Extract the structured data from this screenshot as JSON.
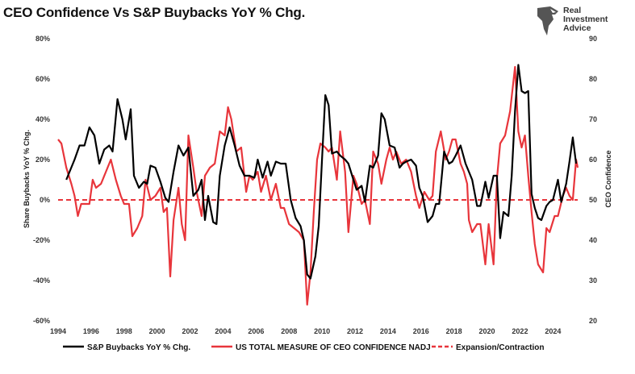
{
  "header": {
    "title": "CEO Confidence Vs S&P Buybacks YoY % Chg.",
    "logo_lines": [
      "Real",
      "Investment",
      "Advice"
    ]
  },
  "chart_data": {
    "type": "line",
    "title": "CEO Confidence Vs S&P Buybacks YoY % Chg.",
    "xlabel": "",
    "ylabel_left": "Share Buybacks YoY % Chg.",
    "ylabel_right": "CEO Confidence",
    "xlim": [
      1994,
      2025.5
    ],
    "ylim_left": [
      -60,
      80
    ],
    "ylim_right": [
      20,
      90
    ],
    "x_ticks": [
      "1994",
      "1996",
      "1998",
      "2000",
      "2002",
      "2004",
      "2006",
      "2008",
      "2010",
      "2012",
      "2014",
      "2016",
      "2018",
      "2020",
      "2022",
      "2024"
    ],
    "y_left_ticks": [
      "-60%",
      "-40%",
      "-20%",
      "0%",
      "20%",
      "40%",
      "60%",
      "80%"
    ],
    "y_right_ticks": [
      "20",
      "30",
      "40",
      "50",
      "60",
      "70",
      "80",
      "90"
    ],
    "legend_position": "bottom",
    "grid": false,
    "series": [
      {
        "name": "S&P Buybacks YoY % Chg.",
        "axis": "left",
        "color": "#000000",
        "points": [
          [
            1994.5,
            10
          ],
          [
            1995.0,
            20
          ],
          [
            1995.3,
            27
          ],
          [
            1995.6,
            27
          ],
          [
            1995.9,
            36
          ],
          [
            1996.2,
            32
          ],
          [
            1996.5,
            18
          ],
          [
            1996.8,
            25
          ],
          [
            1997.1,
            27
          ],
          [
            1997.3,
            24
          ],
          [
            1997.6,
            50
          ],
          [
            1997.9,
            40
          ],
          [
            1998.1,
            30
          ],
          [
            1998.4,
            45
          ],
          [
            1998.6,
            12
          ],
          [
            1998.9,
            6
          ],
          [
            1999.2,
            9
          ],
          [
            1999.4,
            8
          ],
          [
            1999.6,
            17
          ],
          [
            1999.9,
            16
          ],
          [
            2000.2,
            9
          ],
          [
            2000.5,
            1
          ],
          [
            2000.7,
            -1
          ],
          [
            2001.0,
            14
          ],
          [
            2001.3,
            27
          ],
          [
            2001.6,
            22
          ],
          [
            2001.9,
            26
          ],
          [
            2002.2,
            2
          ],
          [
            2002.5,
            5
          ],
          [
            2002.7,
            10
          ],
          [
            2002.9,
            -10
          ],
          [
            2003.1,
            2
          ],
          [
            2003.4,
            -11
          ],
          [
            2003.6,
            -12
          ],
          [
            2003.8,
            12
          ],
          [
            2004.1,
            27
          ],
          [
            2004.4,
            36
          ],
          [
            2004.7,
            27
          ],
          [
            2005.0,
            17
          ],
          [
            2005.3,
            12
          ],
          [
            2005.6,
            12
          ],
          [
            2005.9,
            11
          ],
          [
            2006.1,
            20
          ],
          [
            2006.4,
            11
          ],
          [
            2006.7,
            19
          ],
          [
            2006.9,
            12
          ],
          [
            2007.2,
            19
          ],
          [
            2007.5,
            18
          ],
          [
            2007.8,
            18
          ],
          [
            2008.1,
            0
          ],
          [
            2008.4,
            -9
          ],
          [
            2008.7,
            -13
          ],
          [
            2008.9,
            -20
          ],
          [
            2009.1,
            -37
          ],
          [
            2009.3,
            -39
          ],
          [
            2009.6,
            -28
          ],
          [
            2009.8,
            -13
          ],
          [
            2010.0,
            20
          ],
          [
            2010.2,
            52
          ],
          [
            2010.4,
            47
          ],
          [
            2010.6,
            23
          ],
          [
            2010.9,
            24
          ],
          [
            2011.1,
            22
          ],
          [
            2011.4,
            20
          ],
          [
            2011.6,
            18
          ],
          [
            2011.9,
            10
          ],
          [
            2012.1,
            5
          ],
          [
            2012.4,
            7
          ],
          [
            2012.6,
            -1
          ],
          [
            2012.9,
            17
          ],
          [
            2013.1,
            16
          ],
          [
            2013.4,
            22
          ],
          [
            2013.6,
            43
          ],
          [
            2013.8,
            40
          ],
          [
            2014.1,
            27
          ],
          [
            2014.4,
            26
          ],
          [
            2014.7,
            16
          ],
          [
            2014.9,
            18
          ],
          [
            2015.1,
            19
          ],
          [
            2015.4,
            20
          ],
          [
            2015.7,
            17
          ],
          [
            2015.9,
            6
          ],
          [
            2016.1,
            2
          ],
          [
            2016.4,
            -11
          ],
          [
            2016.7,
            -8
          ],
          [
            2016.9,
            -2
          ],
          [
            2017.1,
            -2
          ],
          [
            2017.4,
            24
          ],
          [
            2017.7,
            18
          ],
          [
            2017.9,
            19
          ],
          [
            2018.1,
            22
          ],
          [
            2018.4,
            27
          ],
          [
            2018.7,
            18
          ],
          [
            2018.9,
            14
          ],
          [
            2019.1,
            10
          ],
          [
            2019.4,
            -3
          ],
          [
            2019.6,
            -3
          ],
          [
            2019.9,
            9
          ],
          [
            2020.1,
            1
          ],
          [
            2020.4,
            12
          ],
          [
            2020.6,
            12
          ],
          [
            2020.8,
            -19
          ],
          [
            2021.0,
            -6
          ],
          [
            2021.3,
            -8
          ],
          [
            2021.5,
            12
          ],
          [
            2021.7,
            44
          ],
          [
            2021.9,
            67
          ],
          [
            2022.1,
            54
          ],
          [
            2022.3,
            53
          ],
          [
            2022.5,
            54
          ],
          [
            2022.7,
            3
          ],
          [
            2022.9,
            -4
          ],
          [
            2023.1,
            -9
          ],
          [
            2023.3,
            -10
          ],
          [
            2023.6,
            -3
          ],
          [
            2023.8,
            -1
          ],
          [
            2024.0,
            0
          ],
          [
            2024.3,
            10
          ],
          [
            2024.5,
            -1
          ],
          [
            2024.8,
            8
          ],
          [
            2025.0,
            19
          ],
          [
            2025.2,
            31
          ],
          [
            2025.4,
            18
          ]
        ]
      },
      {
        "name": "US TOTAL MEASURE OF CEO CONFIDENCE NADJ",
        "axis": "right",
        "color": "#e8353b",
        "points": [
          [
            1994.0,
            65
          ],
          [
            1994.2,
            64
          ],
          [
            1994.5,
            58
          ],
          [
            1994.8,
            54
          ],
          [
            1995.0,
            51
          ],
          [
            1995.2,
            46
          ],
          [
            1995.4,
            49
          ],
          [
            1995.7,
            49
          ],
          [
            1995.9,
            49
          ],
          [
            1996.1,
            55
          ],
          [
            1996.3,
            53
          ],
          [
            1996.6,
            54
          ],
          [
            1996.9,
            57
          ],
          [
            1997.2,
            60
          ],
          [
            1997.5,
            55
          ],
          [
            1997.8,
            51
          ],
          [
            1998.0,
            49
          ],
          [
            1998.3,
            49
          ],
          [
            1998.5,
            41
          ],
          [
            1998.8,
            43
          ],
          [
            1999.1,
            46
          ],
          [
            1999.3,
            55
          ],
          [
            1999.6,
            50
          ],
          [
            1999.9,
            51
          ],
          [
            2000.2,
            53
          ],
          [
            2000.4,
            47
          ],
          [
            2000.6,
            48
          ],
          [
            2000.8,
            31
          ],
          [
            2001.0,
            45
          ],
          [
            2001.3,
            53
          ],
          [
            2001.5,
            44
          ],
          [
            2001.7,
            40
          ],
          [
            2001.9,
            66
          ],
          [
            2002.2,
            58
          ],
          [
            2002.4,
            52
          ],
          [
            2002.7,
            46
          ],
          [
            2002.9,
            56
          ],
          [
            2003.2,
            58
          ],
          [
            2003.5,
            59
          ],
          [
            2003.8,
            67
          ],
          [
            2004.1,
            66
          ],
          [
            2004.3,
            73
          ],
          [
            2004.5,
            70
          ],
          [
            2004.8,
            62
          ],
          [
            2005.1,
            63
          ],
          [
            2005.4,
            52
          ],
          [
            2005.6,
            56
          ],
          [
            2005.8,
            55
          ],
          [
            2006.1,
            57
          ],
          [
            2006.3,
            52
          ],
          [
            2006.6,
            56
          ],
          [
            2006.9,
            50
          ],
          [
            2007.2,
            54
          ],
          [
            2007.5,
            48
          ],
          [
            2007.7,
            48
          ],
          [
            2008.0,
            44
          ],
          [
            2008.3,
            43
          ],
          [
            2008.6,
            42
          ],
          [
            2008.9,
            40
          ],
          [
            2009.1,
            24
          ],
          [
            2009.3,
            32
          ],
          [
            2009.5,
            47
          ],
          [
            2009.7,
            60
          ],
          [
            2009.9,
            64
          ],
          [
            2010.2,
            63
          ],
          [
            2010.4,
            62
          ],
          [
            2010.6,
            63
          ],
          [
            2010.9,
            55
          ],
          [
            2011.1,
            67
          ],
          [
            2011.4,
            57
          ],
          [
            2011.6,
            42
          ],
          [
            2011.9,
            56
          ],
          [
            2012.1,
            54
          ],
          [
            2012.4,
            49
          ],
          [
            2012.6,
            50
          ],
          [
            2012.9,
            44
          ],
          [
            2013.1,
            62
          ],
          [
            2013.4,
            59
          ],
          [
            2013.6,
            54
          ],
          [
            2013.9,
            60
          ],
          [
            2014.1,
            63
          ],
          [
            2014.3,
            60
          ],
          [
            2014.5,
            62
          ],
          [
            2014.8,
            59
          ],
          [
            2015.1,
            60
          ],
          [
            2015.4,
            57
          ],
          [
            2015.7,
            51
          ],
          [
            2015.9,
            48
          ],
          [
            2016.2,
            52
          ],
          [
            2016.5,
            50
          ],
          [
            2016.7,
            51
          ],
          [
            2016.9,
            62
          ],
          [
            2017.2,
            67
          ],
          [
            2017.5,
            60
          ],
          [
            2017.7,
            62
          ],
          [
            2017.9,
            65
          ],
          [
            2018.1,
            65
          ],
          [
            2018.4,
            59
          ],
          [
            2018.6,
            57
          ],
          [
            2018.8,
            54
          ],
          [
            2018.9,
            45
          ],
          [
            2019.1,
            42
          ],
          [
            2019.4,
            44
          ],
          [
            2019.6,
            44
          ],
          [
            2019.9,
            34
          ],
          [
            2020.1,
            44
          ],
          [
            2020.4,
            34
          ],
          [
            2020.6,
            55
          ],
          [
            2020.8,
            64
          ],
          [
            2021.1,
            66
          ],
          [
            2021.4,
            72
          ],
          [
            2021.7,
            83
          ],
          [
            2021.9,
            67
          ],
          [
            2022.1,
            63
          ],
          [
            2022.3,
            66
          ],
          [
            2022.5,
            56
          ],
          [
            2022.7,
            47
          ],
          [
            2022.9,
            39
          ],
          [
            2023.1,
            34
          ],
          [
            2023.4,
            32
          ],
          [
            2023.6,
            43
          ],
          [
            2023.8,
            42
          ],
          [
            2024.1,
            46
          ],
          [
            2024.3,
            46
          ],
          [
            2024.6,
            51
          ],
          [
            2024.8,
            53
          ],
          [
            2025.0,
            51
          ],
          [
            2025.2,
            50
          ],
          [
            2025.4,
            60
          ],
          [
            2025.5,
            58
          ]
        ]
      },
      {
        "name": "Expansion/Contraction",
        "axis": "left",
        "color": "#e8353b",
        "style": "dashed",
        "value": 0
      }
    ]
  }
}
